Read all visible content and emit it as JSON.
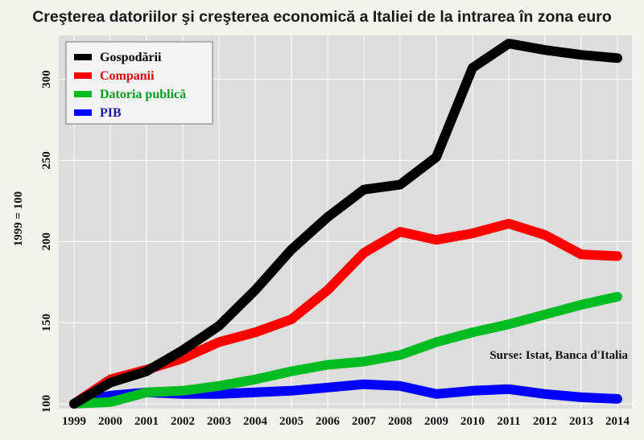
{
  "chart_data": {
    "type": "line",
    "title": "Creşterea datoriilor şi creşterea economică a Italiei de la intrarea în zona euro",
    "xlabel": "",
    "ylabel": "1999 = 100",
    "ylim": [
      97,
      327
    ],
    "yticks": [
      100,
      150,
      200,
      250,
      300
    ],
    "categories": [
      "1999",
      "2000",
      "2001",
      "2002",
      "2003",
      "2004",
      "2005",
      "2006",
      "2007",
      "2008",
      "2009",
      "2010",
      "2011",
      "2012",
      "2013",
      "2014"
    ],
    "grid": true,
    "legend_position": "top-left",
    "series": [
      {
        "name": "Gospodării",
        "color": "#000000",
        "values": [
          100,
          113,
          120,
          133,
          148,
          170,
          195,
          215,
          232,
          235,
          252,
          307,
          322,
          318,
          315,
          313
        ]
      },
      {
        "name": "Companii",
        "color": "#ff0000",
        "values": [
          100,
          115,
          121,
          128,
          138,
          144,
          152,
          170,
          193,
          206,
          201,
          205,
          211,
          204,
          192,
          191
        ]
      },
      {
        "name": "Datoria publică",
        "color": "#00bb22",
        "values": [
          100,
          101,
          107,
          108,
          111,
          115,
          120,
          124,
          126,
          130,
          138,
          144,
          149,
          155,
          161,
          166
        ]
      },
      {
        "name": "PIB",
        "color": "#0000ff",
        "values": [
          100,
          105,
          107,
          106,
          106,
          107,
          108,
          110,
          112,
          111,
          106,
          108,
          109,
          106,
          104,
          103
        ]
      }
    ],
    "annotation": "Surse: Istat, Banca d'Italia"
  },
  "colors": {
    "background": "#f4f4ee",
    "plot_background": "#dddddd",
    "grid": "#ffffff"
  }
}
